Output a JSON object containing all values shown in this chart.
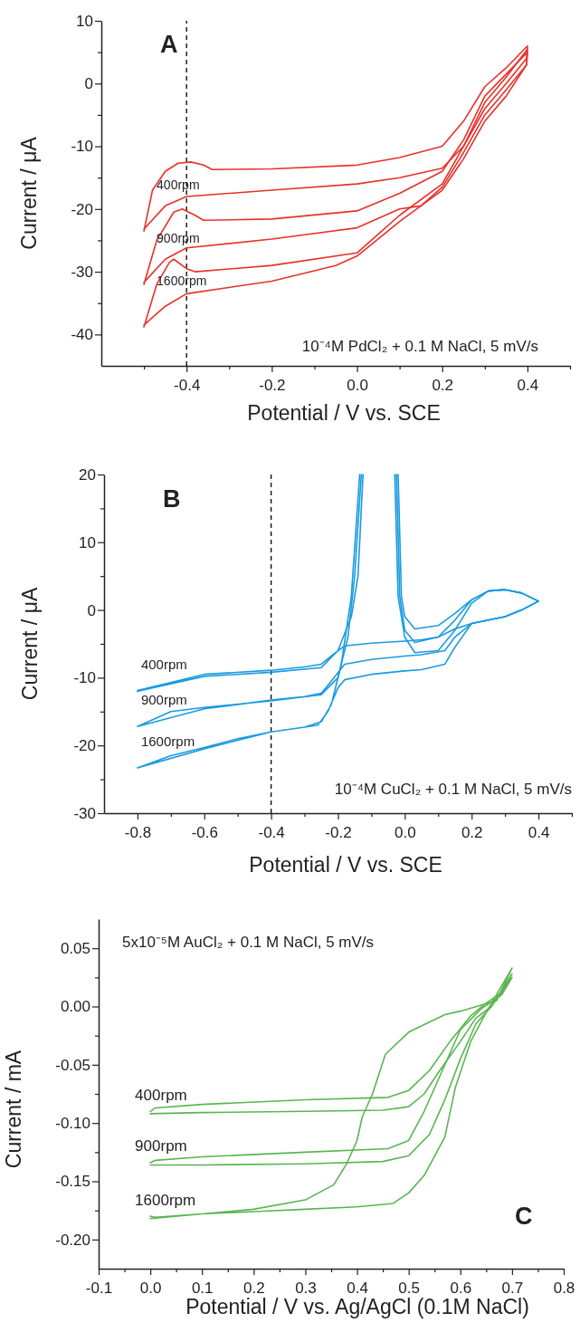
{
  "chart_data": [
    {
      "type": "line",
      "xlabel": "Potential / V  vs. SCE",
      "ylabel": "Current / μA",
      "xlim": [
        -0.6,
        0.5
      ],
      "ylim": [
        -45,
        10
      ],
      "xticks": [
        {
          "value": -0.5,
          "label": null
        },
        -0.4,
        {
          "value": -0.3,
          "label": null
        },
        -0.2,
        {
          "value": -0.1,
          "label": null
        },
        {
          "value": 0,
          "label": "0.0"
        },
        {
          "value": 0.1,
          "label": null
        },
        0.2,
        {
          "value": 0.3,
          "label": null
        },
        0.4,
        {
          "value": 0.5,
          "label": null
        }
      ],
      "yticks": [
        -40,
        {
          "value": -35,
          "label": null
        },
        -30,
        {
          "value": -25,
          "label": null
        },
        -20,
        {
          "value": -15,
          "label": null
        },
        -10,
        {
          "value": -5,
          "label": null
        },
        0,
        {
          "value": 5,
          "label": null
        },
        10
      ],
      "ref_lines": [
        {
          "axis": "x",
          "value": -0.4,
          "color": "#000000",
          "line_style": "dashed"
        }
      ],
      "annotations": [
        "A",
        "10⁻⁴M PdCl₂ + 0.1 M NaCl, 5 mV/s"
      ],
      "series": [
        {
          "name": "400rpm",
          "color": "#e8312a",
          "x": [
            -0.5,
            -0.48,
            -0.45,
            -0.42,
            -0.39,
            -0.36,
            -0.34,
            -0.2,
            0,
            0.1,
            0.2,
            0.25,
            0.3,
            0.35,
            0.4,
            0.398,
            0.35,
            0.3,
            0.25,
            0.2,
            0.1,
            0,
            -0.2,
            -0.4,
            -0.45,
            -0.5
          ],
          "values": [
            -23.5,
            -17,
            -14,
            -12.7,
            -12.5,
            -13,
            -13.7,
            -13.6,
            -13,
            -11.8,
            -10,
            -6,
            -0.5,
            2.5,
            6,
            4,
            0,
            -4,
            -10,
            -13.5,
            -15,
            -16,
            -17,
            -18,
            -19.5,
            -23.2
          ]
        },
        {
          "name": "900rpm",
          "color": "#e8312a",
          "x": [
            -0.5,
            -0.47,
            -0.43,
            -0.41,
            -0.38,
            -0.36,
            -0.2,
            0,
            0.1,
            0.2,
            0.25,
            0.3,
            0.35,
            0.4,
            0.398,
            0.35,
            0.3,
            0.25,
            0.2,
            0.15,
            0.1,
            0,
            -0.2,
            -0.4,
            -0.45,
            -0.5
          ],
          "values": [
            -32,
            -25,
            -20.5,
            -20,
            -21,
            -21.8,
            -21.6,
            -20.3,
            -17.5,
            -14,
            -9,
            -2,
            1.5,
            5,
            3,
            -1,
            -5,
            -11,
            -16.5,
            -19.5,
            -20,
            -23,
            -24.8,
            -26.2,
            -28,
            -31.7
          ]
        },
        {
          "name": "1600rpm",
          "color": "#e8312a",
          "x": [
            -0.5,
            -0.47,
            -0.44,
            -0.43,
            -0.4,
            -0.38,
            -0.2,
            0,
            0.1,
            0.2,
            0.25,
            0.3,
            0.35,
            0.4,
            0.398,
            0.35,
            0.3,
            0.25,
            0.2,
            0.1,
            0,
            -0.05,
            -0.2,
            -0.4,
            -0.45,
            -0.5
          ],
          "values": [
            -38.8,
            -32,
            -28.5,
            -28,
            -29.5,
            -30,
            -29,
            -27,
            -21,
            -16,
            -10,
            -3,
            1,
            5.5,
            3,
            -2,
            -6,
            -12,
            -17,
            -22,
            -27.5,
            -29,
            -31.5,
            -33.5,
            -35.5,
            -38.5
          ]
        }
      ]
    },
    {
      "type": "line",
      "xlabel": "Potential / V  vs. SCE",
      "ylabel": "Current / μA",
      "xlim": [
        -0.9,
        0.5
      ],
      "ylim": [
        -30,
        20
      ],
      "xticks": [
        -0.8,
        {
          "value": -0.7,
          "label": null
        },
        -0.6,
        {
          "value": -0.5,
          "label": null
        },
        -0.4,
        {
          "value": -0.3,
          "label": null
        },
        -0.2,
        {
          "value": -0.1,
          "label": null
        },
        {
          "value": 0,
          "label": "0.0"
        },
        {
          "value": 0.1,
          "label": null
        },
        0.2,
        {
          "value": 0.3,
          "label": null
        },
        0.4,
        {
          "value": 0.5,
          "label": null
        }
      ],
      "yticks": [
        -30,
        {
          "value": -25,
          "label": null
        },
        -20,
        {
          "value": -15,
          "label": null
        },
        -10,
        {
          "value": -5,
          "label": null
        },
        0,
        {
          "value": 5,
          "label": null
        },
        10,
        {
          "value": 15,
          "label": null
        },
        20
      ],
      "ref_lines": [
        {
          "axis": "x",
          "value": -0.4,
          "color": "#000000",
          "line_style": "dashed"
        }
      ],
      "annotations": [
        "B",
        "10⁻⁴M CuCl₂ + 0.1 M NaCl, 5 mV/s"
      ],
      "series": [
        {
          "name": "400rpm",
          "color": "#1a9be0",
          "x": [
            -0.8,
            -0.6,
            -0.4,
            -0.25,
            -0.2,
            -0.16,
            -0.14,
            -0.125,
            null,
            -0.02,
            -0.01,
            0,
            0.03,
            0.1,
            0.15,
            0.2,
            0.25,
            0.3,
            0.35,
            0.4,
            0.35,
            0.3,
            0.2,
            0.15,
            0.1,
            0.05,
            0,
            -0.1,
            -0.18,
            -0.22,
            -0.25,
            -0.3,
            -0.4,
            -0.6,
            -0.8
          ],
          "values": [
            -12,
            -9.8,
            -9.2,
            -8.5,
            -6,
            -1,
            5,
            20,
            null,
            20,
            2,
            -1,
            -2.8,
            -2.3,
            -0.5,
            1.5,
            2.8,
            3,
            2.5,
            1.3,
            0,
            -1,
            -2,
            -2.8,
            -4,
            -4.4,
            -4.6,
            -4.9,
            -5.3,
            -6.8,
            -8,
            -8.4,
            -8.9,
            -9.5,
            -11.9
          ]
        },
        {
          "name": "900rpm",
          "color": "#1a9be0",
          "x": [
            -0.8,
            -0.7,
            -0.6,
            -0.4,
            -0.25,
            -0.2,
            -0.17,
            -0.15,
            -0.13,
            null,
            -0.025,
            -0.015,
            0,
            0.03,
            0.1,
            0.15,
            0.2,
            0.25,
            0.3,
            0.35,
            0.4,
            0.35,
            0.3,
            0.2,
            0.15,
            0.12,
            0.05,
            0,
            -0.1,
            -0.18,
            -0.22,
            -0.25,
            -0.3,
            -0.4,
            -0.6,
            -0.8
          ],
          "values": [
            -17.2,
            -15,
            -14.4,
            -13.4,
            -12.5,
            -10,
            -4,
            5,
            20,
            null,
            20,
            2,
            -3,
            -4.8,
            -4,
            -1.5,
            1.5,
            2.8,
            3,
            2.5,
            1.3,
            0,
            -1,
            -2,
            -4,
            -6,
            -6.6,
            -6.8,
            -7.3,
            -8,
            -10.5,
            -12.3,
            -12.8,
            -13.3,
            -14.6,
            -17.2
          ]
        },
        {
          "name": "1600rpm",
          "color": "#1a9be0",
          "x": [
            -0.8,
            -0.7,
            -0.6,
            -0.5,
            -0.4,
            -0.3,
            -0.25,
            -0.22,
            -0.19,
            -0.16,
            -0.135,
            null,
            -0.03,
            -0.02,
            0,
            0.03,
            0.1,
            0.15,
            0.2,
            0.25,
            0.3,
            0.35,
            0.4,
            0.35,
            0.3,
            0.2,
            0.15,
            0.12,
            0.05,
            0,
            -0.1,
            -0.18,
            -0.2,
            -0.23,
            -0.26,
            -0.3,
            -0.4,
            -0.6,
            -0.8
          ],
          "values": [
            -23.3,
            -21.5,
            -20.3,
            -19,
            -18,
            -17.3,
            -16.5,
            -14,
            -8,
            2,
            20,
            null,
            20,
            2,
            -4,
            -6.3,
            -6,
            -3,
            1,
            2.8,
            3,
            2.5,
            1.3,
            0,
            -1,
            -2,
            -5.5,
            -8,
            -8.8,
            -9,
            -9.5,
            -10.3,
            -11.5,
            -15,
            -17,
            -17.3,
            -18,
            -20.5,
            -23.3
          ]
        }
      ]
    },
    {
      "type": "line",
      "xlabel": "Potential / V  vs. Ag/AgCl (0.1M NaCl)",
      "ylabel": "Current / mA",
      "xlim": [
        -0.1,
        0.8
      ],
      "ylim": [
        -0.225,
        0.075
      ],
      "xticks": [
        -0.1,
        {
          "value": -0.05,
          "label": null
        },
        {
          "value": 0,
          "label": "0.0"
        },
        {
          "value": 0.05,
          "label": null
        },
        0.1,
        {
          "value": 0.15,
          "label": null
        },
        0.2,
        {
          "value": 0.25,
          "label": null
        },
        0.3,
        {
          "value": 0.35,
          "label": null
        },
        0.4,
        {
          "value": 0.45,
          "label": null
        },
        0.5,
        {
          "value": 0.55,
          "label": null
        },
        0.6,
        {
          "value": 0.65,
          "label": null
        },
        0.7,
        {
          "value": 0.75,
          "label": null
        },
        0.8
      ],
      "yticks": [
        {
          "value": -0.2,
          "label": "-0.20"
        },
        {
          "value": -0.175,
          "label": null
        },
        -0.15,
        {
          "value": -0.125,
          "label": null
        },
        {
          "value": -0.1,
          "label": "-0.10"
        },
        {
          "value": -0.075,
          "label": null
        },
        -0.05,
        {
          "value": -0.025,
          "label": null
        },
        {
          "value": 0,
          "label": "0.00"
        },
        {
          "value": 0.025,
          "label": null
        },
        0.05
      ],
      "annotations": [
        "5x10⁻⁵M AuCl₂ + 0.1 M NaCl, 5 mV/s",
        "C"
      ],
      "series": [
        {
          "name": "400rpm",
          "color": "#5ab552",
          "x": [
            0,
            0.1,
            0.3,
            0.45,
            0.5,
            0.53,
            0.56,
            0.6,
            0.63,
            0.66,
            0.7,
            0.68,
            0.65,
            0.62,
            0.58,
            0.54,
            0.5,
            0.46,
            0.3,
            0.1,
            0.01,
            0
          ],
          "values": [
            -0.092,
            -0.091,
            -0.09,
            -0.089,
            -0.086,
            -0.075,
            -0.055,
            -0.03,
            -0.01,
            0,
            0.028,
            0.012,
            0.003,
            -0.008,
            -0.03,
            -0.055,
            -0.072,
            -0.078,
            -0.08,
            -0.084,
            -0.087,
            -0.09
          ]
        },
        {
          "name": "900rpm",
          "color": "#5ab552",
          "x": [
            0,
            0.1,
            0.3,
            0.45,
            0.5,
            0.54,
            0.57,
            0.6,
            0.63,
            0.66,
            0.7,
            0.68,
            0.64,
            0.6,
            0.56,
            0.53,
            0.5,
            0.46,
            0.3,
            0.1,
            0.01,
            0
          ],
          "values": [
            -0.136,
            -0.136,
            -0.135,
            -0.133,
            -0.128,
            -0.11,
            -0.08,
            -0.045,
            -0.015,
            0,
            0.025,
            0.01,
            -0.002,
            -0.02,
            -0.06,
            -0.09,
            -0.115,
            -0.122,
            -0.125,
            -0.129,
            -0.132,
            -0.134
          ]
        },
        {
          "name": "1600rpm",
          "color": "#5ab552",
          "x": [
            0,
            0.1,
            0.2,
            0.3,
            0.4,
            0.47,
            0.5,
            0.53,
            0.57,
            0.59,
            0.62,
            0.65,
            0.7,
            0.67,
            0.6,
            0.57,
            0.5,
            0.455,
            0.43,
            0.41,
            0.4,
            0.38,
            0.355,
            0.3,
            0.2,
            0.1,
            0.01,
            0
          ],
          "values": [
            -0.182,
            -0.178,
            -0.176,
            -0.174,
            -0.172,
            -0.169,
            -0.16,
            -0.145,
            -0.112,
            -0.07,
            -0.03,
            -0.005,
            0.033,
            0.005,
            -0.004,
            -0.007,
            -0.022,
            -0.041,
            -0.075,
            -0.095,
            -0.115,
            -0.135,
            -0.153,
            -0.166,
            -0.174,
            -0.178,
            -0.181,
            -0.18
          ]
        }
      ]
    }
  ]
}
